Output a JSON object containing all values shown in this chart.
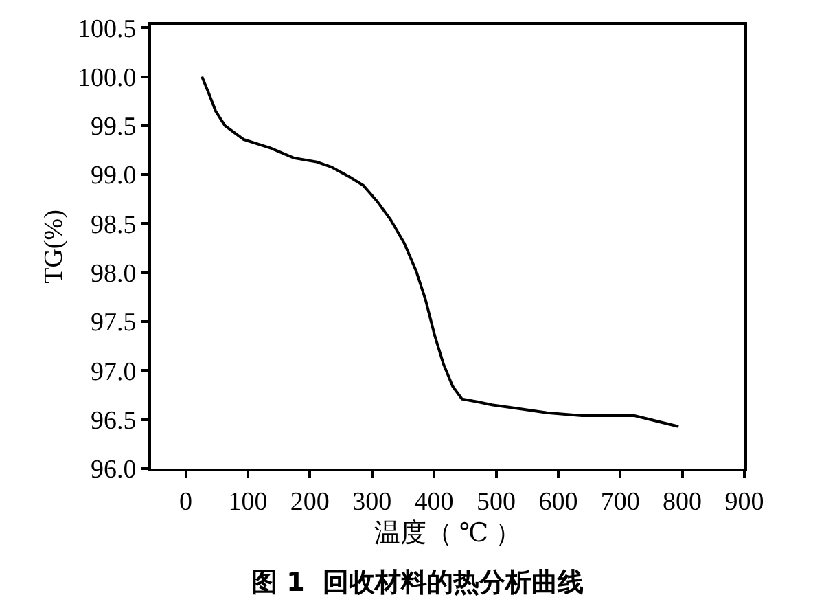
{
  "chart_data": {
    "type": "line",
    "title": "图 1  回收材料的热分析曲线",
    "xlabel": "温度（ ℃ ）",
    "ylabel": "TG(%)",
    "x": [
      26,
      37,
      48,
      63,
      93,
      137,
      174,
      211,
      234,
      263,
      286,
      308,
      330,
      352,
      371,
      386,
      401,
      415,
      430,
      445,
      471,
      493,
      538,
      582,
      638,
      723,
      761,
      794
    ],
    "series": [
      {
        "color": "#000000",
        "values": [
          100.0,
          99.83,
          99.65,
          99.5,
          99.36,
          99.27,
          99.17,
          99.13,
          99.08,
          98.98,
          98.89,
          98.73,
          98.54,
          98.3,
          98.02,
          97.73,
          97.36,
          97.07,
          96.84,
          96.71,
          96.68,
          96.65,
          96.61,
          96.57,
          96.54,
          96.54,
          96.48,
          96.43
        ]
      }
    ],
    "xlim": [
      -56,
      900
    ],
    "xticks": [
      0,
      100,
      200,
      300,
      400,
      500,
      600,
      700,
      800,
      900
    ],
    "ylim": [
      96,
      100.53
    ],
    "yticks": [
      {
        "value": 96,
        "label": "96.0"
      },
      96.5,
      {
        "value": 97,
        "label": "97.0"
      },
      97.5,
      {
        "value": 98,
        "label": "98.0"
      },
      98.5,
      {
        "value": 99,
        "label": "99.0"
      },
      99.5,
      {
        "value": 100,
        "label": "100.0"
      },
      100.5
    ],
    "grid": false,
    "marker": "none",
    "line_style": "solid"
  }
}
